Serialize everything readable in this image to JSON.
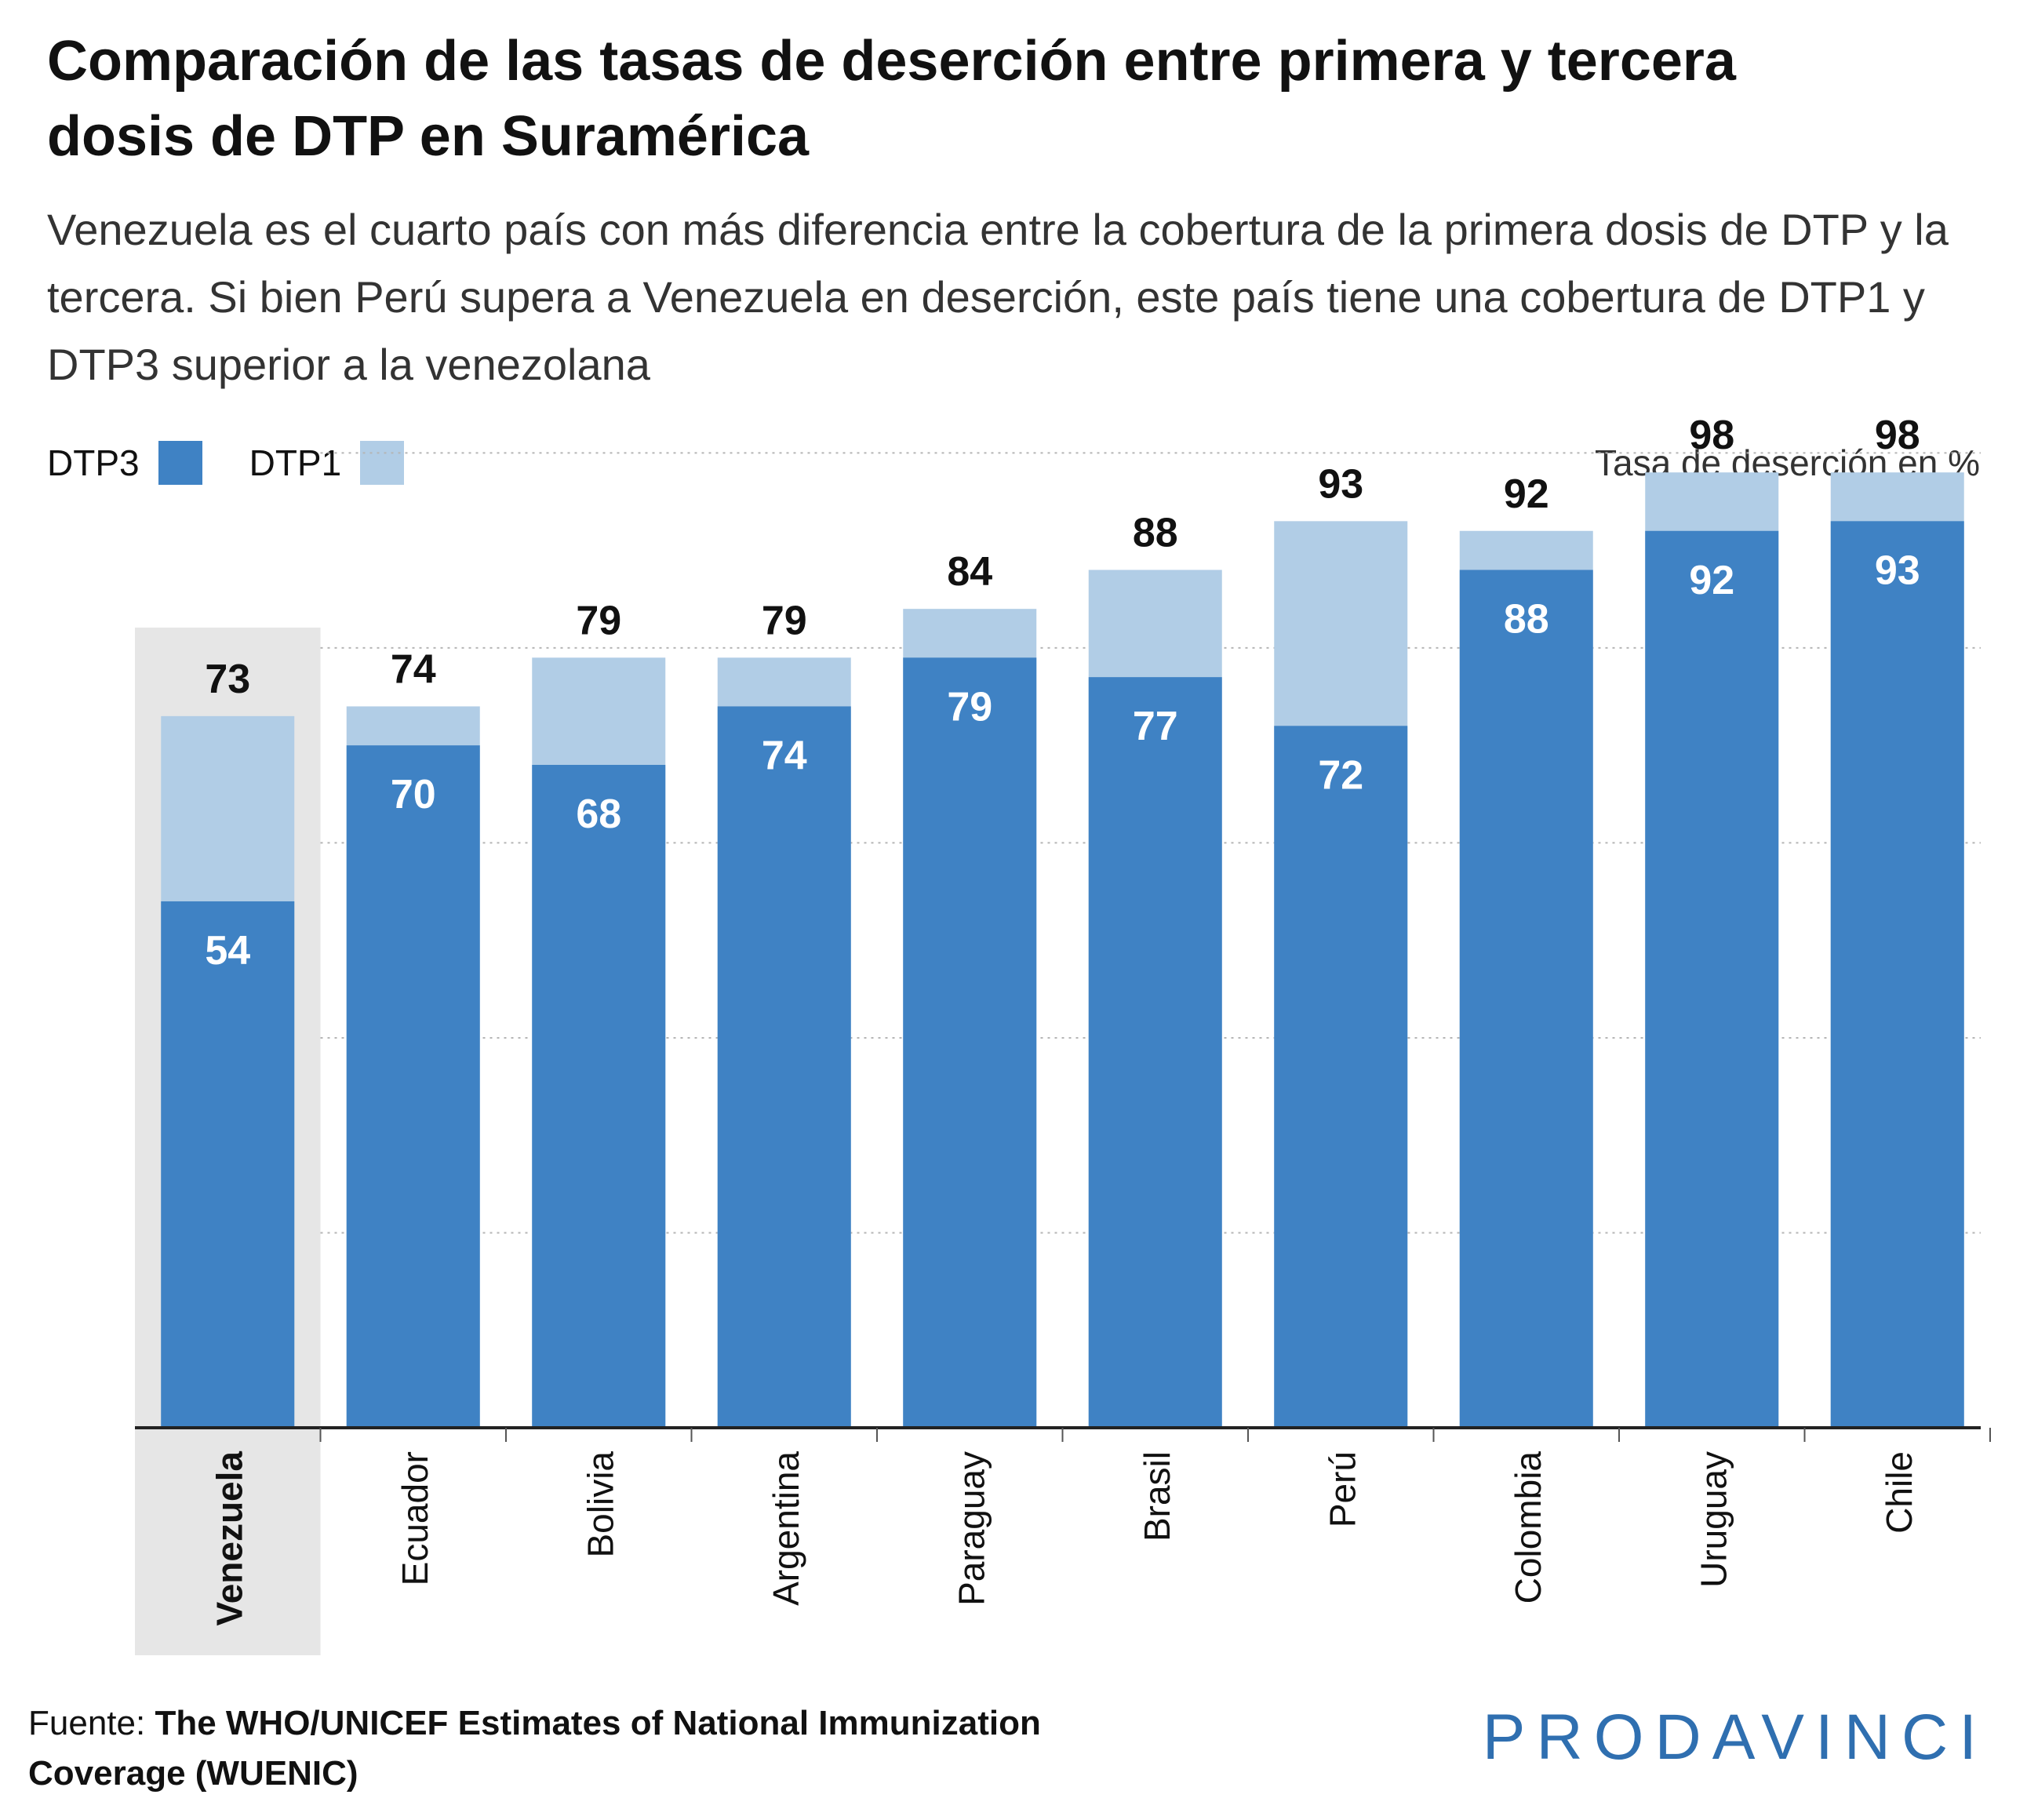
{
  "header": {
    "title": "Comparación de las tasas de deserción entre primera y tercera dosis de DTP en Suramérica",
    "subtitle": "Venezuela es el cuarto país con más diferencia entre la cobertura de la primera dosis de DTP y la tercera. Si bien Perú supera a Venezuela en deserción, este país tiene una cobertura de DTP1 y DTP3 superior a la venezolana"
  },
  "legend": {
    "dtp3_label": "DTP3",
    "dtp1_label": "DTP1",
    "unit_note": "Tasa de deserción en %"
  },
  "colors": {
    "dtp3": "#3f82c4",
    "dtp1": "#b1cde6",
    "highlight_band": "#e6e6e6",
    "brand": "#2f6fb0"
  },
  "footer": {
    "source_label": "Fuente: ",
    "source_text": "The WHO/UNICEF Estimates of National Immunization Coverage (WUENIC)",
    "brand": "PRODAVINCI"
  },
  "chart_data": {
    "type": "bar",
    "categories": [
      "Venezuela",
      "Ecuador",
      "Bolivia",
      "Argentina",
      "Paraguay",
      "Brasil",
      "Perú",
      "Colombia",
      "Uruguay",
      "Chile"
    ],
    "highlight_category": "Venezuela",
    "series": [
      {
        "name": "DTP3",
        "values": [
          54,
          70,
          68,
          74,
          79,
          77,
          72,
          88,
          92,
          93
        ]
      },
      {
        "name": "DTP1",
        "values": [
          73,
          74,
          79,
          79,
          84,
          88,
          93,
          92,
          98,
          98
        ]
      }
    ],
    "ylim": [
      0,
      105
    ],
    "grid": true,
    "legend_position": "top-left"
  }
}
